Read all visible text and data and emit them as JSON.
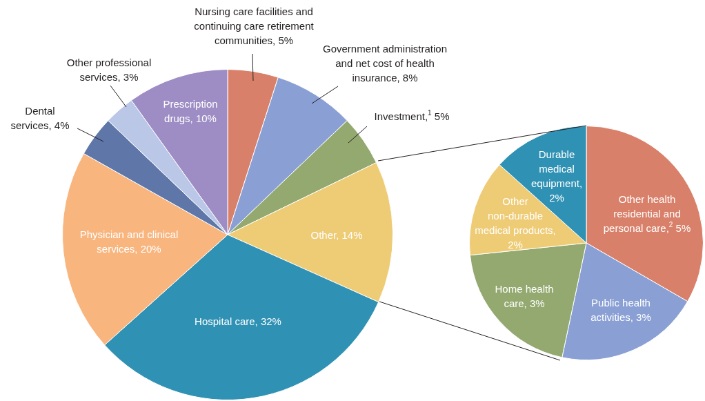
{
  "chart_data": [
    {
      "type": "pie",
      "categories": [
        "Nursing care facilities and continuing care retirement communities, 5%",
        "Government administration and net cost of health insurance, 8%",
        "Investment,$^{1}$ 5%",
        "Other, 14%",
        "Hospital care, 32%",
        "Physician and clinical services, 20%",
        "Dental services, 4%",
        "Other professional services, 3%",
        "Prescription drugs, 10%"
      ],
      "values": [
        5,
        8,
        5,
        14,
        32,
        20,
        4,
        3,
        10
      ],
      "colors": [
        "#d9806a",
        "#8aa0d4",
        "#93a96f",
        "#eecb75",
        "#2f91b3",
        "#f8b57e",
        "#5f77a8",
        "#bac7e6",
        "#9d8dc4"
      ]
    },
    {
      "type": "pie",
      "categories": [
        "Other health residential and personal care,$^{2}$ 5%",
        "Public health activities, 3%",
        "Home health care, 3%",
        "Other non-durable medical products, 2%",
        "Durable medical equipment, 2%"
      ],
      "values": [
        5,
        3,
        3,
        2,
        2
      ],
      "colors": [
        "#d9806a",
        "#8aa0d4",
        "#93a96f",
        "#eecb75",
        "#2f91b3"
      ]
    }
  ]
}
